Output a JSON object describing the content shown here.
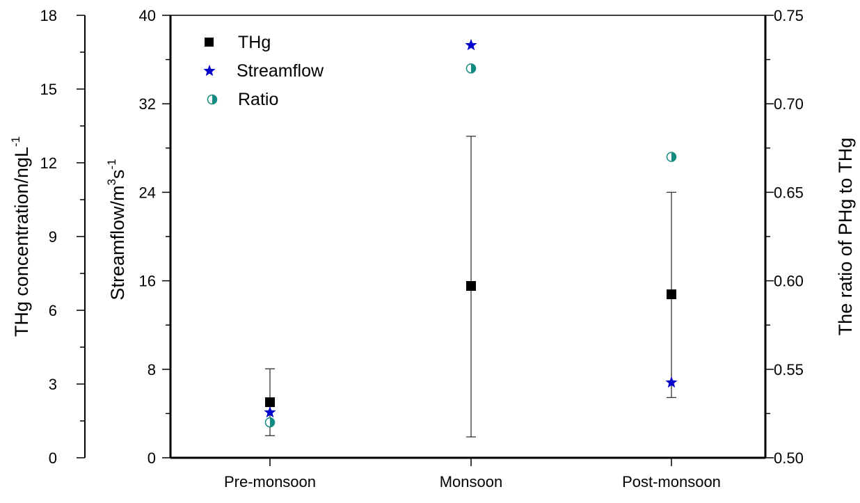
{
  "chart_data": {
    "type": "scatter",
    "categories": [
      "Pre-monsoon",
      "Monsoon",
      "Post-monsoon"
    ],
    "axes": {
      "left": {
        "label": "THg concentration/ngL",
        "label_sup": "-1",
        "range": [
          0,
          18
        ],
        "ticks": [
          0,
          3,
          6,
          9,
          12,
          15,
          18
        ],
        "tick_labels": [
          "0",
          "3",
          "6",
          "9",
          "12",
          "15",
          "18"
        ]
      },
      "left2": {
        "label": "Streamflow/m",
        "label_sup1": "3",
        "label_mid": "s",
        "label_sup2": "-1",
        "range": [
          0,
          40
        ],
        "ticks": [
          0,
          8,
          16,
          24,
          32,
          40
        ],
        "tick_labels": [
          "0",
          "8",
          "16",
          "24",
          "32",
          "40"
        ]
      },
      "right": {
        "label": "The ratio of PHg to THg",
        "range": [
          0.5,
          0.75
        ],
        "ticks": [
          0.5,
          0.55,
          0.6,
          0.65,
          0.7,
          0.75
        ],
        "tick_labels": [
          "0.50",
          "0.55",
          "0.60",
          "0.65",
          "0.70",
          "0.75"
        ]
      }
    },
    "legend": {
      "placement": "top-left",
      "entries": [
        "THg",
        "Streamflow",
        "Ratio"
      ]
    },
    "series": [
      {
        "name": "THg",
        "axis": "left",
        "marker": "square",
        "color": "#000000",
        "values": [
          2.26,
          6.99,
          6.65
        ],
        "err_low": [
          0.9,
          0.85,
          2.45
        ],
        "err_high": [
          3.62,
          13.08,
          10.8
        ]
      },
      {
        "name": "Streamflow",
        "axis": "left2",
        "marker": "star",
        "color": "#0000cc",
        "values": [
          4.1,
          37.3,
          6.8
        ]
      },
      {
        "name": "Ratio",
        "axis": "right",
        "marker": "half-circle",
        "color": "#138a80",
        "values": [
          0.52,
          0.72,
          0.67
        ]
      }
    ]
  }
}
